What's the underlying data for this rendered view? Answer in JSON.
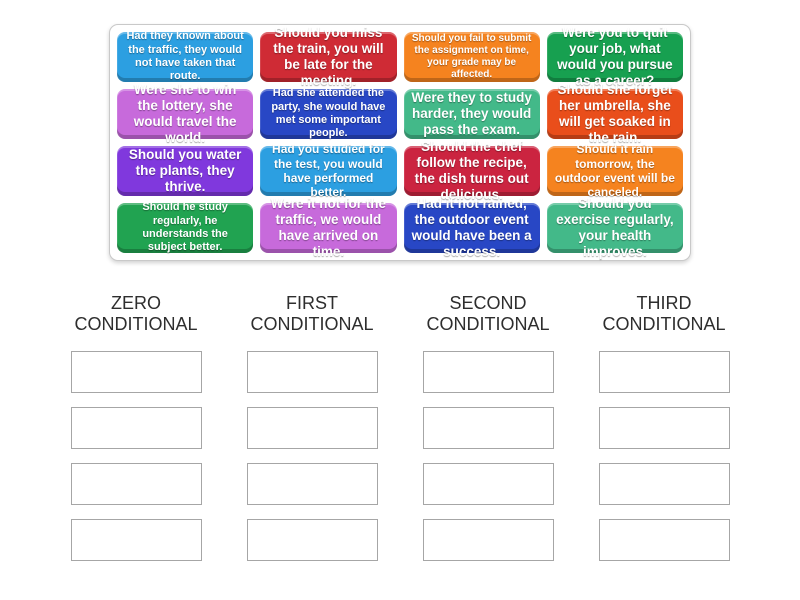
{
  "word_bank": {
    "cards": [
      {
        "text": "Had they known about the traffic, they would not have taken that route.",
        "color": "#2C9FE1",
        "size": "sm"
      },
      {
        "text": "Should you miss the train, you will be late for the meeting.",
        "color": "#CF2B35",
        "size": "lg"
      },
      {
        "text": "Should you fail to submit the assignment on time, your grade may be affected.",
        "color": "#F5831F",
        "size": "xs"
      },
      {
        "text": "Were you to quit your job, what would you pursue as a career?",
        "color": "#17A050",
        "size": "lg"
      },
      {
        "text": "Were she to win the lottery, she would travel the world.",
        "color": "#C76ADB",
        "size": "lg"
      },
      {
        "text": "Had she attended the party, she would have met some important people.",
        "color": "#2847C5",
        "size": "sm"
      },
      {
        "text": "Were they to study harder, they would pass the exam.",
        "color": "#43B989",
        "size": "lg"
      },
      {
        "text": "Should she forget her umbrella, she will get soaked in the rain.",
        "color": "#E94E1B",
        "size": "lg"
      },
      {
        "text": "Should you water the plants, they thrive.",
        "color": "#8038DD",
        "size": "lg"
      },
      {
        "text": "Had you studied for the test, you would have performed better.",
        "color": "#2C9FE1",
        "size": "md"
      },
      {
        "text": "Should the chef follow the recipe, the dish turns out delicious.",
        "color": "#CB2440",
        "size": "lg"
      },
      {
        "text": "Should it rain tomorrow, the outdoor event will be canceled.",
        "color": "#F5831F",
        "size": "md"
      },
      {
        "text": "Should he study regularly, he understands the subject better.",
        "color": "#21A351",
        "size": "sm"
      },
      {
        "text": "Were it not for the traffic, we would have arrived on time.",
        "color": "#C76ADB",
        "size": "lg"
      },
      {
        "text": "Had it not rained, the outdoor event would have been a success.",
        "color": "#2847C5",
        "size": "lg"
      },
      {
        "text": "Should you exercise regularly, your health improves.",
        "color": "#43B989",
        "size": "lg"
      }
    ]
  },
  "categories": [
    {
      "label": "ZERO CONDITIONAL",
      "slot_count": 4
    },
    {
      "label": "FIRST CONDITIONAL",
      "slot_count": 4
    },
    {
      "label": "SECOND CONDITIONAL",
      "slot_count": 4
    },
    {
      "label": "THIRD CONDITIONAL",
      "slot_count": 4
    }
  ]
}
